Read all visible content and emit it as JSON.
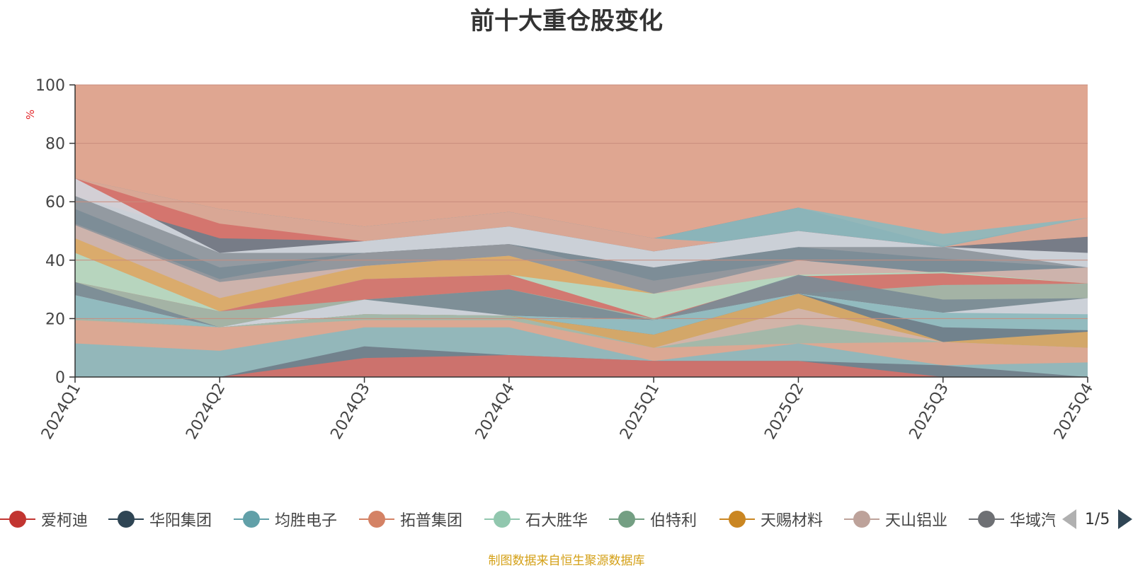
{
  "chart_data": {
    "type": "area",
    "stacked": false,
    "title": "前十大重仓股变化",
    "ylabel": "%",
    "ylim": [
      0,
      100
    ],
    "yticks": [
      0,
      20,
      40,
      60,
      80,
      100
    ],
    "grid": true,
    "categories": [
      "2024Q1",
      "2024Q2",
      "2024Q3",
      "2024Q4",
      "2025Q1",
      "2025Q2",
      "2025Q3",
      "2025Q4"
    ],
    "series": [
      {
        "name": "background",
        "color": "#dfa691",
        "values": [
          100,
          100,
          100,
          100,
          100,
          100,
          100,
          100
        ]
      },
      {
        "name": "band-slate-1",
        "color": "#6f7d89",
        "values": [
          68,
          57.5,
          51.5,
          56.5,
          47.5,
          58,
          45,
          54.5
        ]
      },
      {
        "name": "band-teal-1",
        "color": "#8db9bd",
        "values": [
          68,
          57.5,
          51.5,
          56.5,
          47.5,
          58,
          49,
          54.5
        ]
      },
      {
        "name": "band-salmon-1",
        "color": "#dfa691",
        "values": [
          68,
          57.5,
          51.5,
          56.5,
          47.5,
          44.5,
          44.5,
          54.5
        ]
      },
      {
        "name": "band-red-1",
        "color": "#d4716a",
        "values": [
          68,
          52.5,
          46.5,
          49.5,
          43,
          50,
          44.5,
          48
        ]
      },
      {
        "name": "band-slate-2",
        "color": "#6f7d89",
        "values": [
          62,
          47.5,
          46.5,
          51.5,
          43,
          50,
          44.5,
          48
        ]
      },
      {
        "name": "band-pale-1",
        "color": "#d3d7dd",
        "values": [
          68,
          42.5,
          46.5,
          51.5,
          43,
          50,
          44.5,
          42.5
        ]
      },
      {
        "name": "band-gray-1",
        "color": "#8e959c",
        "values": [
          62,
          42.5,
          42.5,
          45.5,
          37.5,
          44.5,
          44.5,
          37.5
        ]
      },
      {
        "name": "band-blue-gray-1",
        "color": "#7b8c96",
        "values": [
          57.5,
          37.5,
          42.5,
          45.5,
          37.5,
          44.5,
          40.5,
          37.5
        ]
      },
      {
        "name": "band-mid-gray-1",
        "color": "#95989d",
        "values": [
          52.5,
          33.5,
          42.5,
          45.5,
          33,
          40,
          35.5,
          37.5
        ]
      },
      {
        "name": "band-rosy-1",
        "color": "#d1b5ae",
        "values": [
          52,
          32.5,
          38,
          41.5,
          28.5,
          40,
          35.5,
          37.5
        ]
      },
      {
        "name": "band-gold-1",
        "color": "#dbaa66",
        "values": [
          47.5,
          27,
          38,
          41.5,
          28.5,
          35,
          36,
          32
        ]
      },
      {
        "name": "band-mint-1",
        "color": "#b4d8c6",
        "values": [
          42.5,
          22.5,
          33.5,
          35,
          28.5,
          35,
          36,
          32
        ]
      },
      {
        "name": "band-red-2",
        "color": "#d4716a",
        "values": [
          32.5,
          22.5,
          33.5,
          35,
          20,
          34.5,
          35.5,
          32
        ]
      },
      {
        "name": "band-sage-1",
        "color": "#9fb9a9",
        "values": [
          32.5,
          22.5,
          26.5,
          30,
          20,
          28.5,
          31.5,
          32
        ]
      },
      {
        "name": "band-blue-gray-2",
        "color": "#7b8c96",
        "values": [
          32.5,
          17,
          26.5,
          30,
          19.5,
          35,
          26.5,
          27
        ]
      },
      {
        "name": "band-pale-2",
        "color": "#d3d7dd",
        "values": [
          28,
          17,
          26.5,
          21,
          19.5,
          28.5,
          22,
          27
        ]
      },
      {
        "name": "band-teal-2",
        "color": "#8db9bd",
        "values": [
          28,
          17,
          21.5,
          21,
          19.5,
          28.5,
          22,
          21.5
        ]
      },
      {
        "name": "band-slate-3",
        "color": "#6f7d89",
        "values": [
          20,
          17,
          21.5,
          21,
          14.5,
          28.5,
          17,
          16
        ]
      },
      {
        "name": "band-gold-2",
        "color": "#dbaa66",
        "values": [
          20,
          17,
          21.5,
          21,
          14.5,
          28.5,
          12,
          15.5
        ]
      },
      {
        "name": "band-rosy-2",
        "color": "#d1b5ae",
        "values": [
          20,
          17,
          21.5,
          21,
          10,
          23.5,
          12,
          10
        ]
      },
      {
        "name": "band-sage-2",
        "color": "#9fb9a9",
        "values": [
          20,
          17,
          21.5,
          21,
          10,
          18,
          12,
          10
        ]
      },
      {
        "name": "band-salmon-2",
        "color": "#dfa691",
        "values": [
          19.5,
          17,
          19.5,
          19.5,
          10,
          11.5,
          12,
          10
        ]
      },
      {
        "name": "band-teal-3",
        "color": "#8db9bd",
        "values": [
          11.5,
          9,
          17,
          17,
          5.5,
          11.5,
          4,
          5
        ]
      },
      {
        "name": "band-slate-4",
        "color": "#6f7d89",
        "values": [
          0,
          0,
          10.5,
          7.5,
          5.5,
          5.5,
          4,
          0
        ]
      },
      {
        "name": "band-red-3",
        "color": "#d4716a",
        "values": [
          0,
          0,
          6.5,
          7.5,
          5.5,
          5.5,
          0,
          0
        ]
      }
    ],
    "legend": {
      "position": "bottom",
      "items": [
        {
          "name": "爱柯迪",
          "color": "#c23531"
        },
        {
          "name": "华阳集团",
          "color": "#2f4554"
        },
        {
          "name": "均胜电子",
          "color": "#61a0a8"
        },
        {
          "name": "拓普集团",
          "color": "#d48265"
        },
        {
          "name": "石大胜华",
          "color": "#91c7ae"
        },
        {
          "name": "伯特利",
          "color": "#749f83"
        },
        {
          "name": "天赐材料",
          "color": "#ca8622"
        },
        {
          "name": "天山铝业",
          "color": "#bda29a"
        },
        {
          "name": "华域汽车",
          "color": "#6e7074"
        }
      ],
      "page": "1/5"
    }
  },
  "footer": {
    "source": "制图数据来自恒生聚源数据库"
  }
}
